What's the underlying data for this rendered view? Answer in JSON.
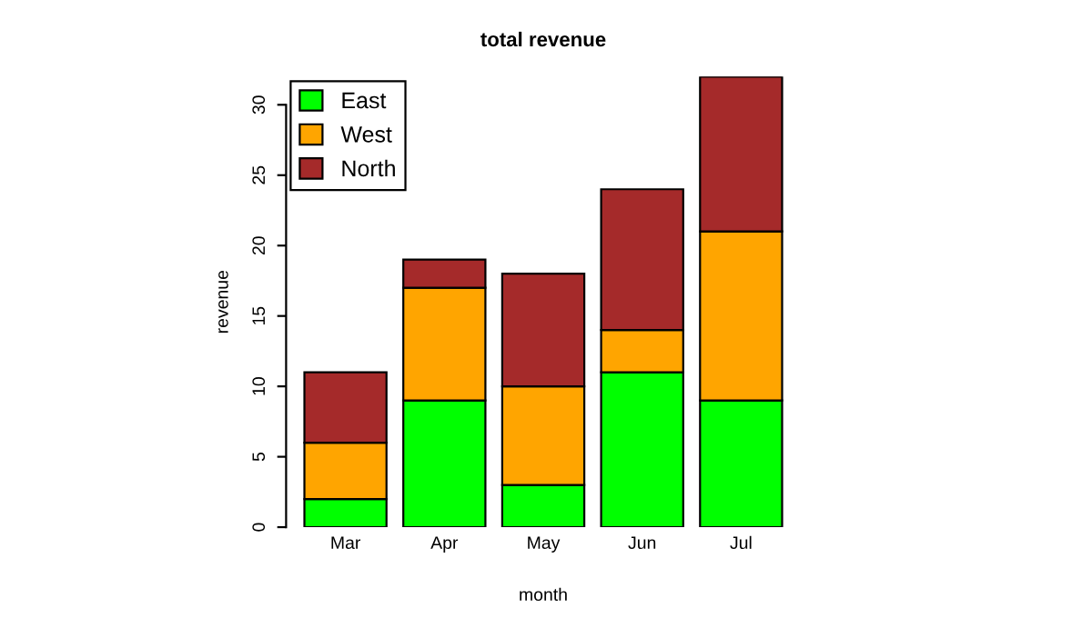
{
  "chart_data": {
    "type": "bar",
    "title": "total revenue",
    "xlabel": "month",
    "ylabel": "revenue",
    "stacked": true,
    "categories": [
      "Mar",
      "Apr",
      "May",
      "Jun",
      "Jul"
    ],
    "series": [
      {
        "name": "East",
        "color": "#00ff00",
        "values": [
          2,
          9,
          3,
          11,
          9
        ]
      },
      {
        "name": "West",
        "color": "#ffa500",
        "values": [
          4,
          8,
          7,
          3,
          12
        ]
      },
      {
        "name": "North",
        "color": "#a52a2a",
        "values": [
          5,
          2,
          8,
          10,
          11
        ]
      }
    ],
    "ylim": [
      0,
      32
    ],
    "yticks": [
      0,
      5,
      10,
      15,
      20,
      25,
      30
    ],
    "grid": false,
    "legend": "top left"
  }
}
